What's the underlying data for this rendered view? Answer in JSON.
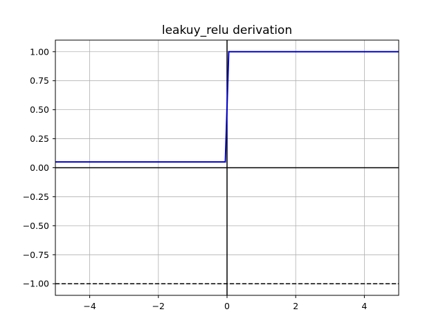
{
  "chart_data": {
    "type": "line",
    "title": "leakuy_relu derivation",
    "xlabel": "",
    "ylabel": "",
    "xlim": [
      -5,
      5
    ],
    "ylim": [
      -1.1,
      1.1
    ],
    "xticks": [
      -4,
      -2,
      0,
      2,
      4
    ],
    "xtick_labels": [
      "−4",
      "−2",
      "0",
      "2",
      "4"
    ],
    "yticks": [
      -1.0,
      -0.75,
      -0.5,
      -0.25,
      0.0,
      0.25,
      0.5,
      0.75,
      1.0
    ],
    "ytick_labels": [
      "−1.00",
      "−0.75",
      "−0.50",
      "−0.25",
      "0.00",
      "0.25",
      "0.50",
      "0.75",
      "1.00"
    ],
    "grid": true,
    "series": [
      {
        "color": "#0000cc",
        "x": [
          -5,
          -0.05,
          0.05,
          5
        ],
        "y": [
          0.05,
          0.05,
          1.0,
          1.0
        ]
      }
    ],
    "reference_lines": [
      {
        "orientation": "horizontal",
        "value": 0,
        "style": "solid",
        "color": "#000000"
      },
      {
        "orientation": "vertical",
        "value": 0,
        "style": "solid",
        "color": "#000000"
      },
      {
        "orientation": "horizontal",
        "value": -1,
        "style": "dashed",
        "color": "#000000"
      }
    ]
  }
}
